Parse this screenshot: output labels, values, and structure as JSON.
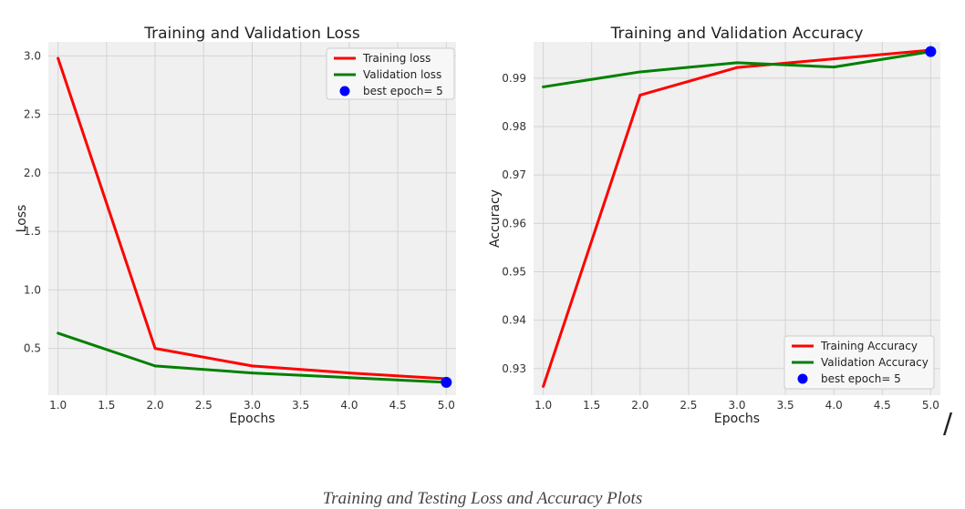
{
  "caption": "Training and Testing Loss and Accuracy Plots",
  "stray_mark": "/",
  "colors": {
    "red": "#ff0000",
    "green": "#008000",
    "blue": "#0000ff",
    "panel_bg": "#f0f0f0",
    "grid": "#d4d4d4"
  },
  "chart_data": [
    {
      "type": "line",
      "title": "Training and Validation Loss",
      "xlabel": "Epochs",
      "ylabel": "Loss",
      "xlim": [
        0.9,
        5.1
      ],
      "ylim": [
        0.1,
        3.12
      ],
      "xticks": [
        "1.0",
        "1.5",
        "2.0",
        "2.5",
        "3.0",
        "3.5",
        "4.0",
        "4.5",
        "5.0"
      ],
      "yticks": [
        "0.5",
        "1.0",
        "1.5",
        "2.0",
        "2.5",
        "3.0"
      ],
      "grid": true,
      "legend_position": "top-right",
      "x": [
        1,
        2,
        3,
        4,
        5
      ],
      "series": [
        {
          "name": "Training loss",
          "color": "#ff0000",
          "values": [
            2.98,
            0.5,
            0.35,
            0.29,
            0.24
          ]
        },
        {
          "name": "Validation loss",
          "color": "#008000",
          "values": [
            0.63,
            0.35,
            0.29,
            0.25,
            0.21
          ]
        }
      ],
      "best_point": {
        "label": "best epoch= 5",
        "x": 5,
        "y": 0.21,
        "color": "#0000ff"
      }
    },
    {
      "type": "line",
      "title": "Training and Validation Accuracy",
      "xlabel": "Epochs",
      "ylabel": "Accuracy",
      "xlim": [
        0.9,
        5.1
      ],
      "ylim": [
        0.9245,
        0.9975
      ],
      "xticks": [
        "1.0",
        "1.5",
        "2.0",
        "2.5",
        "3.0",
        "3.5",
        "4.0",
        "4.5",
        "5.0"
      ],
      "yticks": [
        "0.93",
        "0.94",
        "0.95",
        "0.96",
        "0.97",
        "0.98",
        "0.99"
      ],
      "grid": true,
      "legend_position": "bottom-right",
      "x": [
        1,
        2,
        3,
        4,
        5
      ],
      "series": [
        {
          "name": "Training Accuracy",
          "color": "#ff0000",
          "values": [
            0.9263,
            0.9865,
            0.9922,
            0.994,
            0.9958
          ]
        },
        {
          "name": "Validation Accuracy",
          "color": "#008000",
          "values": [
            0.9882,
            0.9913,
            0.9932,
            0.9923,
            0.9955
          ]
        }
      ],
      "best_point": {
        "label": "best epoch= 5",
        "x": 5,
        "y": 0.9955,
        "color": "#0000ff"
      }
    }
  ]
}
